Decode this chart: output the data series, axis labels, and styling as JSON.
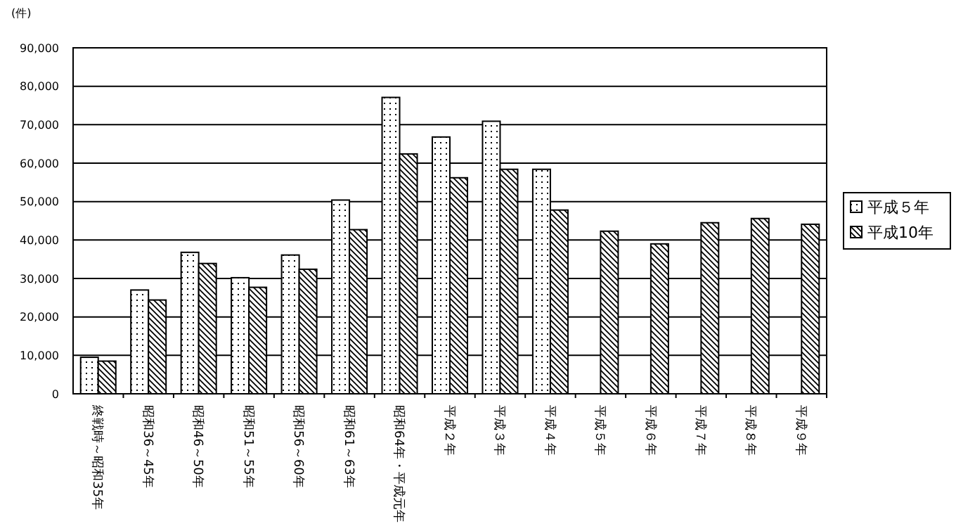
{
  "chart_data": {
    "type": "bar",
    "ylabel": "(件)",
    "categories": [
      "終戦時～昭和35年",
      "昭和36～45年",
      "昭和46～50年",
      "昭和51～55年",
      "昭和56～60年",
      "昭和61～63年",
      "昭和64年・平成元年",
      "平成２年",
      "平成３年",
      "平成４年",
      "平成５年",
      "平成６年",
      "平成７年",
      "平成８年",
      "平成９年"
    ],
    "series": [
      {
        "name": "平成５年",
        "color": "#000000",
        "values": [
          9500,
          27000,
          36800,
          30200,
          36100,
          50400,
          77100,
          66800,
          70900,
          58400,
          null,
          null,
          null,
          null,
          null
        ]
      },
      {
        "name": "平成10年",
        "color": "#000000",
        "values": [
          8500,
          24400,
          33900,
          27700,
          32400,
          42700,
          62400,
          56200,
          58400,
          47800,
          42300,
          39000,
          44500,
          45600,
          44100
        ]
      }
    ],
    "ylim": [
      0,
      90000
    ],
    "yticks": [
      {
        "value": 0,
        "label": "0"
      },
      {
        "value": 10000,
        "label": "10,000"
      },
      {
        "value": 20000,
        "label": "20,000"
      },
      {
        "value": 30000,
        "label": "30,000"
      },
      {
        "value": 40000,
        "label": "40,000"
      },
      {
        "value": 50000,
        "label": "50,000"
      },
      {
        "value": 60000,
        "label": "60,000"
      },
      {
        "value": 70000,
        "label": "70,000"
      },
      {
        "value": 80000,
        "label": "80,000"
      },
      {
        "value": 90000,
        "label": "90,000"
      }
    ],
    "grid": "y",
    "legend": "right"
  }
}
